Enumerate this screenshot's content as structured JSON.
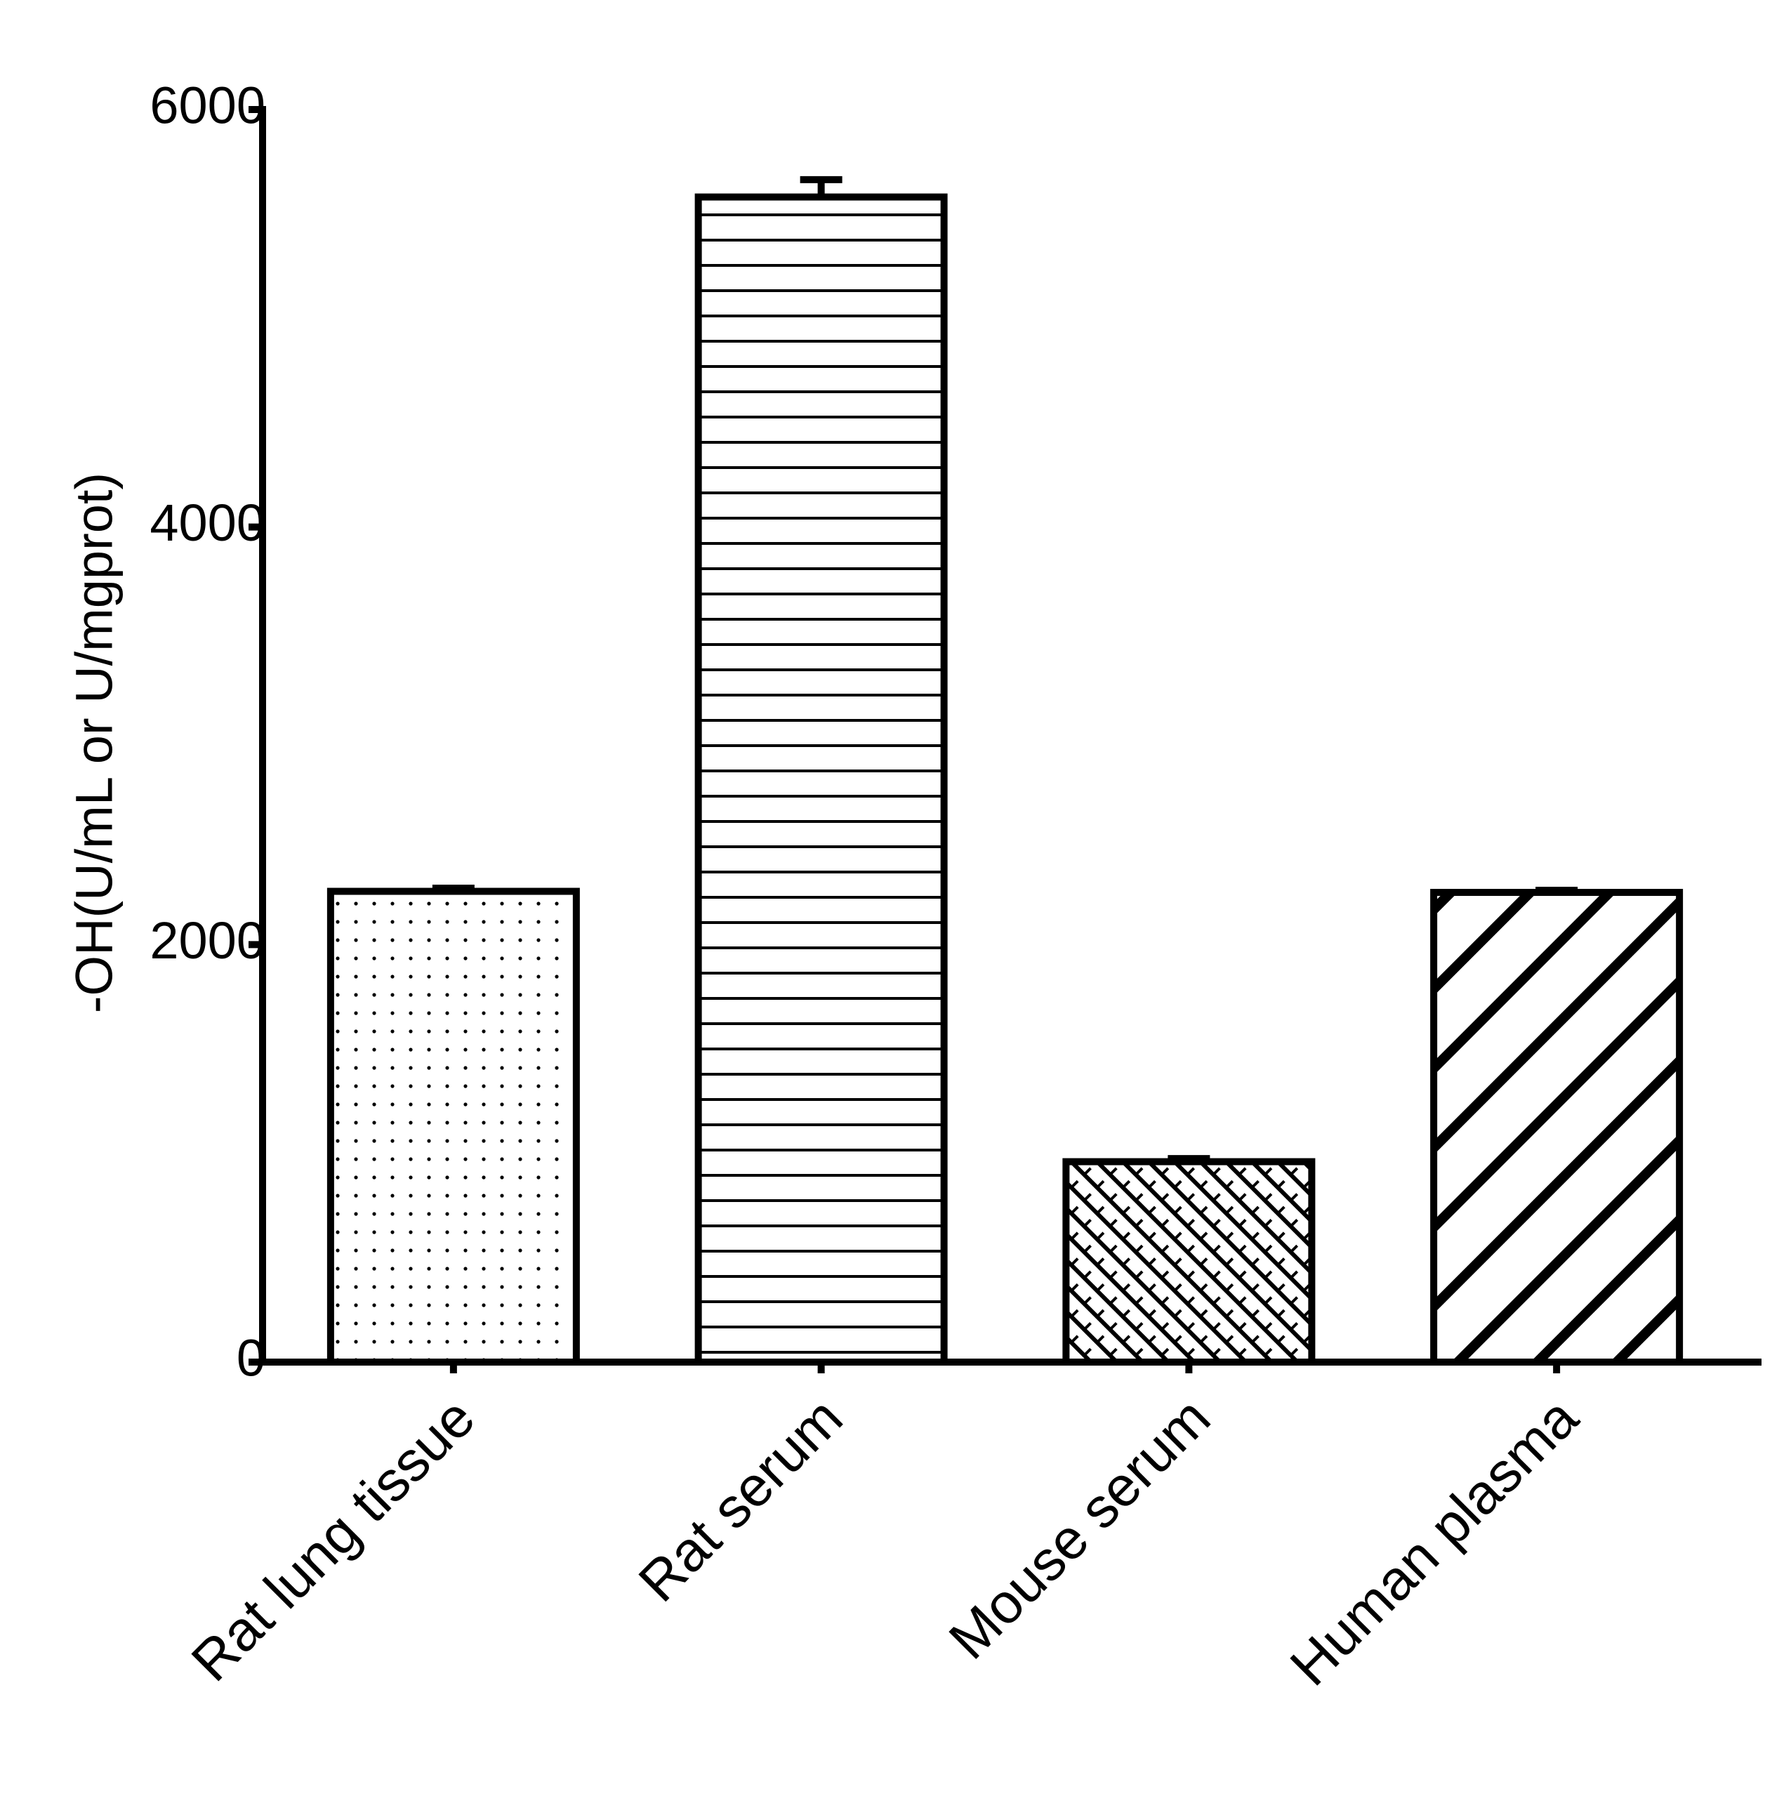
{
  "chart_data": {
    "type": "bar",
    "y_label": "-OH(U/mL or U/mgprot)",
    "categories": [
      "Rat lung tissue",
      "Rat serum",
      "Mouse serum",
      "Human plasma"
    ],
    "values": [
      2255,
      5581,
      960,
      2250
    ],
    "errors": [
      15,
      83,
      15,
      10
    ],
    "patterns": [
      "dots",
      "horizontal",
      "crosshatch",
      "diagonal"
    ],
    "color": "#000000",
    "ylim": [
      0,
      6000
    ],
    "yticks": [
      0,
      2000,
      4000,
      6000
    ],
    "grid": false
  }
}
